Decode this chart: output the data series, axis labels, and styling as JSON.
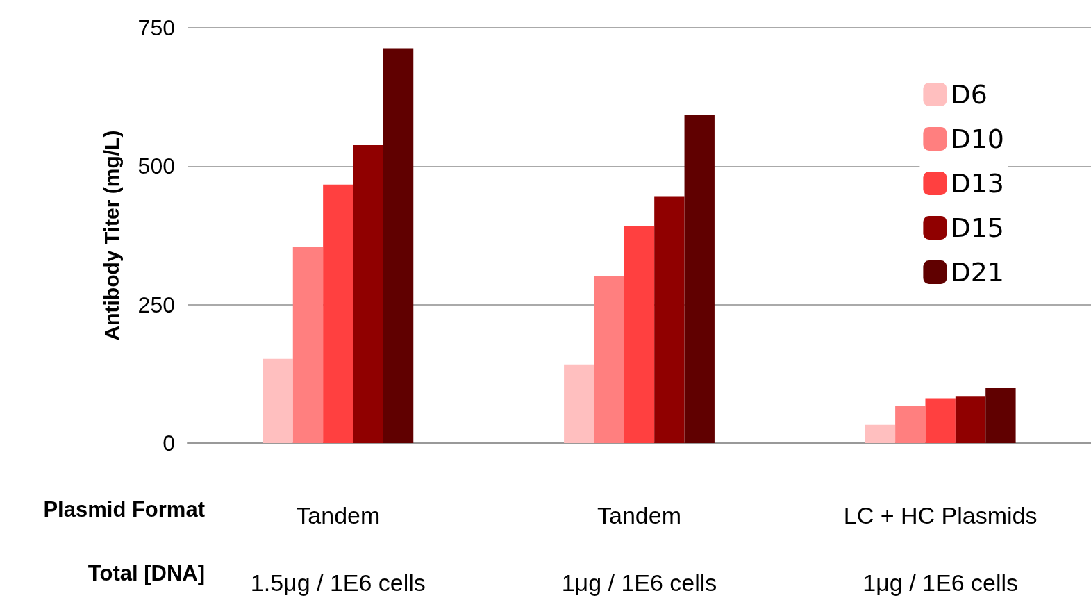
{
  "chart_data": {
    "type": "bar",
    "ylabel": "Antibody Titer (mg/L)",
    "categories": [
      "Tandem\n1.5μg / 1E6 cells",
      "Tandem\n1μg / 1E6 cells",
      "LC + HC Plasmids\n1μg / 1E6 cells"
    ],
    "series": [
      {
        "name": "D6",
        "color": "#ffbfbf",
        "values": [
          152,
          142,
          33
        ]
      },
      {
        "name": "D10",
        "color": "#ff7f7f",
        "values": [
          355,
          302,
          67
        ]
      },
      {
        "name": "D13",
        "color": "#ff4040",
        "values": [
          467,
          392,
          81
        ]
      },
      {
        "name": "D15",
        "color": "#900000",
        "values": [
          538,
          446,
          85
        ]
      },
      {
        "name": "D21",
        "color": "#600000",
        "values": [
          713,
          592,
          100
        ]
      }
    ],
    "ylim": [
      0,
      750
    ],
    "yticks": [
      0,
      250,
      500,
      750
    ],
    "grid": "y",
    "legend": "top right",
    "annotations": [
      "Plasmid Format",
      "Total [DNA]"
    ]
  }
}
